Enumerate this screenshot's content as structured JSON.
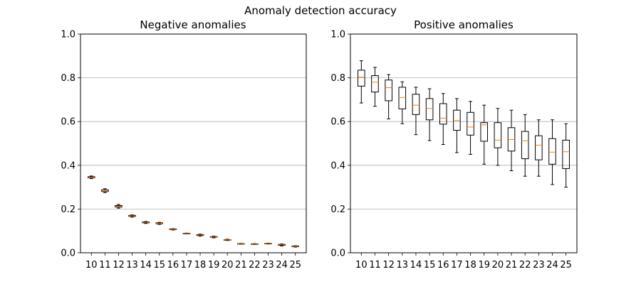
{
  "chart_data": {
    "title": "Anomaly detection accuracy",
    "panels": [
      {
        "type": "box",
        "title": "Negative anomalies",
        "categories": [
          "10",
          "11",
          "12",
          "13",
          "14",
          "15",
          "16",
          "17",
          "18",
          "19",
          "20",
          "21",
          "22",
          "23",
          "24",
          "25"
        ],
        "ylim": [
          0,
          1
        ],
        "yticks": [
          "0.0",
          "0.2",
          "0.4",
          "0.6",
          "0.8",
          "1.0"
        ],
        "grid": "y",
        "boxes": [
          {
            "whislo": 0.339,
            "q1": 0.343,
            "med": 0.345,
            "q3": 0.348,
            "whishi": 0.351
          },
          {
            "whislo": 0.275,
            "q1": 0.28,
            "med": 0.283,
            "q3": 0.288,
            "whishi": 0.293
          },
          {
            "whislo": 0.204,
            "q1": 0.209,
            "med": 0.212,
            "q3": 0.216,
            "whishi": 0.221
          },
          {
            "whislo": 0.163,
            "q1": 0.166,
            "med": 0.168,
            "q3": 0.171,
            "whishi": 0.173
          },
          {
            "whislo": 0.134,
            "q1": 0.137,
            "med": 0.139,
            "q3": 0.141,
            "whishi": 0.143
          },
          {
            "whislo": 0.13,
            "q1": 0.133,
            "med": 0.135,
            "q3": 0.137,
            "whishi": 0.139
          },
          {
            "whislo": 0.104,
            "q1": 0.106,
            "med": 0.107,
            "q3": 0.109,
            "whishi": 0.11
          },
          {
            "whislo": 0.086,
            "q1": 0.087,
            "med": 0.088,
            "q3": 0.089,
            "whishi": 0.09
          },
          {
            "whislo": 0.076,
            "q1": 0.079,
            "med": 0.081,
            "q3": 0.083,
            "whishi": 0.085
          },
          {
            "whislo": 0.068,
            "q1": 0.071,
            "med": 0.072,
            "q3": 0.074,
            "whishi": 0.076
          },
          {
            "whislo": 0.056,
            "q1": 0.058,
            "med": 0.059,
            "q3": 0.06,
            "whishi": 0.062
          },
          {
            "whislo": 0.039,
            "q1": 0.04,
            "med": 0.041,
            "q3": 0.042,
            "whishi": 0.043
          },
          {
            "whislo": 0.038,
            "q1": 0.039,
            "med": 0.04,
            "q3": 0.041,
            "whishi": 0.042
          },
          {
            "whislo": 0.04,
            "q1": 0.041,
            "med": 0.042,
            "q3": 0.043,
            "whishi": 0.044
          },
          {
            "whislo": 0.031,
            "q1": 0.034,
            "med": 0.036,
            "q3": 0.038,
            "whishi": 0.04
          },
          {
            "whislo": 0.026,
            "q1": 0.028,
            "med": 0.029,
            "q3": 0.031,
            "whishi": 0.032
          }
        ]
      },
      {
        "type": "box",
        "title": "Positive anomalies",
        "categories": [
          "10",
          "11",
          "12",
          "13",
          "14",
          "15",
          "16",
          "17",
          "18",
          "19",
          "20",
          "21",
          "22",
          "23",
          "24",
          "25"
        ],
        "ylim": [
          0,
          1
        ],
        "yticks": [
          "0.0",
          "0.2",
          "0.4",
          "0.6",
          "0.8",
          "1.0"
        ],
        "grid": "y",
        "boxes": [
          {
            "whislo": 0.685,
            "q1": 0.762,
            "med": 0.803,
            "q3": 0.835,
            "whishi": 0.878
          },
          {
            "whislo": 0.67,
            "q1": 0.735,
            "med": 0.78,
            "q3": 0.81,
            "whishi": 0.848
          },
          {
            "whislo": 0.612,
            "q1": 0.695,
            "med": 0.755,
            "q3": 0.79,
            "whishi": 0.815
          },
          {
            "whislo": 0.59,
            "q1": 0.658,
            "med": 0.71,
            "q3": 0.757,
            "whishi": 0.782
          },
          {
            "whislo": 0.54,
            "q1": 0.632,
            "med": 0.675,
            "q3": 0.725,
            "whishi": 0.757
          },
          {
            "whislo": 0.513,
            "q1": 0.608,
            "med": 0.66,
            "q3": 0.705,
            "whishi": 0.75
          },
          {
            "whislo": 0.495,
            "q1": 0.588,
            "med": 0.615,
            "q3": 0.682,
            "whishi": 0.728
          },
          {
            "whislo": 0.458,
            "q1": 0.56,
            "med": 0.605,
            "q3": 0.652,
            "whishi": 0.705
          },
          {
            "whislo": 0.45,
            "q1": 0.538,
            "med": 0.575,
            "q3": 0.642,
            "whishi": 0.692
          },
          {
            "whislo": 0.405,
            "q1": 0.51,
            "med": 0.585,
            "q3": 0.595,
            "whishi": 0.675
          },
          {
            "whislo": 0.4,
            "q1": 0.48,
            "med": 0.515,
            "q3": 0.595,
            "whishi": 0.66
          },
          {
            "whislo": 0.375,
            "q1": 0.465,
            "med": 0.518,
            "q3": 0.572,
            "whishi": 0.652
          },
          {
            "whislo": 0.35,
            "q1": 0.43,
            "med": 0.512,
            "q3": 0.555,
            "whishi": 0.632
          },
          {
            "whislo": 0.35,
            "q1": 0.425,
            "med": 0.492,
            "q3": 0.535,
            "whishi": 0.608
          },
          {
            "whislo": 0.312,
            "q1": 0.405,
            "med": 0.46,
            "q3": 0.522,
            "whishi": 0.608
          },
          {
            "whislo": 0.3,
            "q1": 0.385,
            "med": 0.462,
            "q3": 0.515,
            "whishi": 0.59
          }
        ]
      }
    ]
  }
}
